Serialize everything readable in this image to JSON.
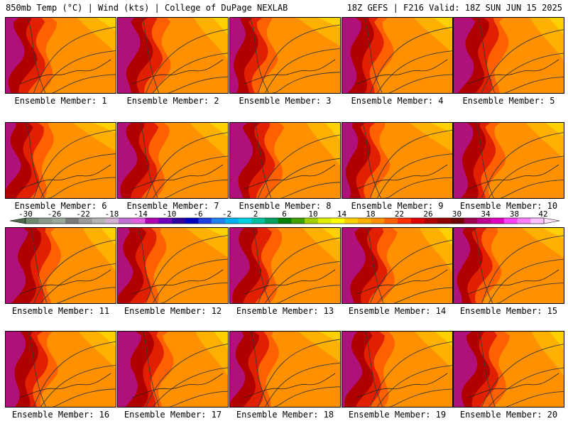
{
  "header": {
    "left": "850mb Temp (°C) | Wind (kts) | College of DuPage NEXLAB",
    "right": "18Z GEFS | F216 Valid: 18Z SUN JUN 15 2025"
  },
  "caption_prefix": "Ensemble Member:",
  "members": [
    {
      "label": "Ensemble Member: 1"
    },
    {
      "label": "Ensemble Member: 2"
    },
    {
      "label": "Ensemble Member: 3"
    },
    {
      "label": "Ensemble Member: 4"
    },
    {
      "label": "Ensemble Member: 5"
    },
    {
      "label": "Ensemble Member: 6"
    },
    {
      "label": "Ensemble Member: 7"
    },
    {
      "label": "Ensemble Member: 8"
    },
    {
      "label": "Ensemble Member: 9"
    },
    {
      "label": "Ensemble Member: 10"
    },
    {
      "label": "Ensemble Member: 11"
    },
    {
      "label": "Ensemble Member: 12"
    },
    {
      "label": "Ensemble Member: 13"
    },
    {
      "label": "Ensemble Member: 14"
    },
    {
      "label": "Ensemble Member: 15"
    },
    {
      "label": "Ensemble Member: 16"
    },
    {
      "label": "Ensemble Member: 17"
    },
    {
      "label": "Ensemble Member: 18"
    },
    {
      "label": "Ensemble Member: 19"
    },
    {
      "label": "Ensemble Member: 20"
    }
  ],
  "colorbar": {
    "tick_labels": [
      "-30",
      "-26",
      "-22",
      "-18",
      "-14",
      "-10",
      "-6",
      "-2",
      "2",
      "6",
      "10",
      "14",
      "18",
      "22",
      "26",
      "30",
      "34",
      "38",
      "42"
    ],
    "colors": [
      "#6e8a6e",
      "#8a9a8a",
      "#9aa89a",
      "#7a7a7a",
      "#9a9a9a",
      "#b4b4b4",
      "#d0b0d0",
      "#c070d0",
      "#e060e0",
      "#b000b0",
      "#7000c0",
      "#3000a0",
      "#0000c0",
      "#2040e0",
      "#2080f0",
      "#00b0f0",
      "#00d0e0",
      "#00c0a0",
      "#00a060",
      "#008000",
      "#40a000",
      "#a0d000",
      "#e0f000",
      "#ffff00",
      "#ffd000",
      "#ffb000",
      "#ff9000",
      "#ff6000",
      "#ff3000",
      "#e00000",
      "#b00000",
      "#900000",
      "#700000",
      "#a00050",
      "#c00090",
      "#e000c0",
      "#ff40ff",
      "#ff80ff",
      "#ffc0ff"
    ],
    "arrow_left_color": "#4a6a4a",
    "arrow_right_color": "#ffe0ff"
  },
  "map_colors": {
    "far_west": "#b0107a",
    "dark_red": "#b00000",
    "red": "#e02000",
    "orange_red": "#ff6000",
    "orange": "#ff9000",
    "light_orange": "#ffb000",
    "yellow": "#ffd000",
    "contour": "#3a3a3a"
  }
}
